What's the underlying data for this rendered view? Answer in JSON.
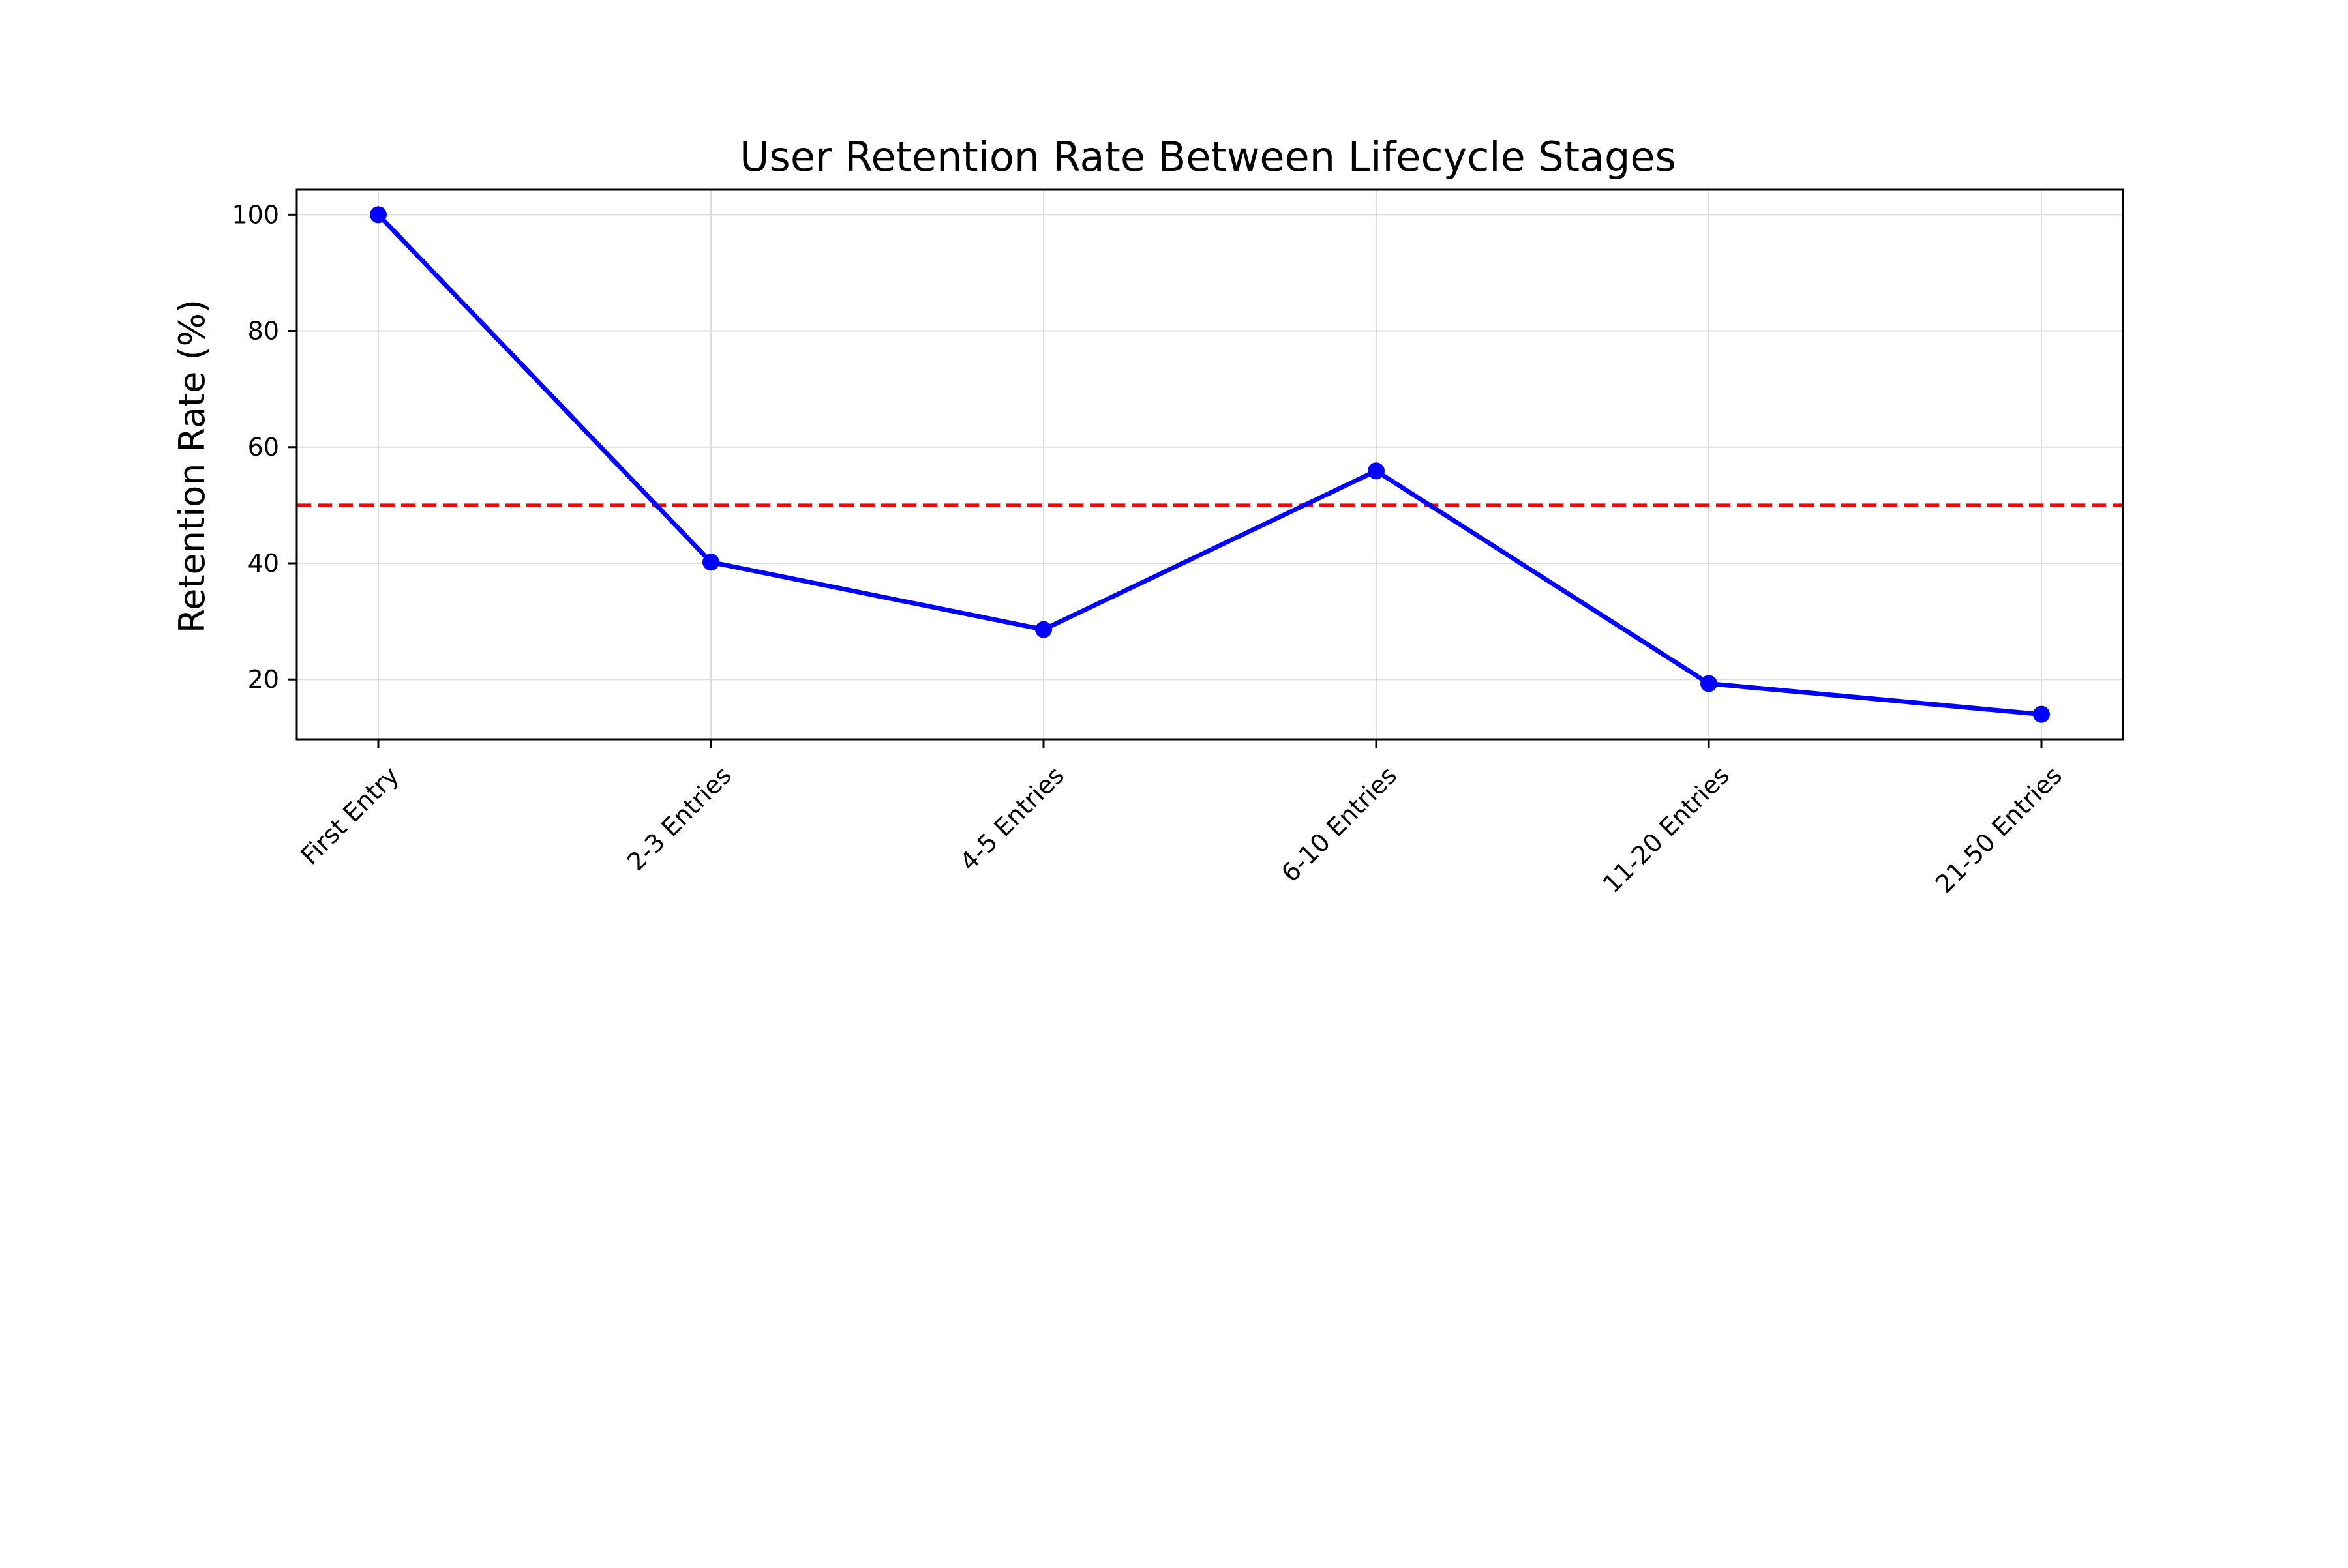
{
  "chart_data": {
    "type": "line",
    "title": "User Retention Rate Between Lifecycle Stages",
    "xlabel": "",
    "ylabel": "Retention Rate (%)",
    "categories": [
      "First Entry",
      "2-3 Entries",
      "4-5 Entries",
      "6-10 Entries",
      "11-20 Entries",
      "21-50 Entries"
    ],
    "series": [
      {
        "values": [
          100,
          40.2,
          28.6,
          55.9,
          19.3,
          14.0
        ],
        "color": "#0000ff",
        "marker": "circle"
      }
    ],
    "reference_line": {
      "y": 50,
      "color": "#ff0000",
      "style": "dashed"
    },
    "yticks": [
      20,
      40,
      60,
      80,
      100
    ],
    "ylim": [
      9.7,
      104.3
    ],
    "grid": true,
    "x_tick_rotation": -45,
    "legend": "none"
  }
}
